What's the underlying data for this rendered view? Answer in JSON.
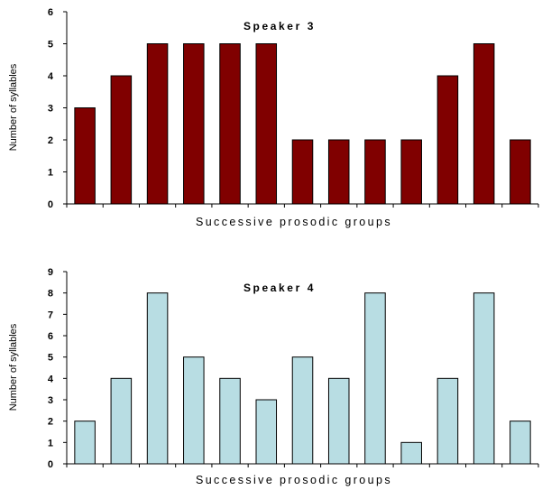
{
  "chart_data": [
    {
      "type": "bar",
      "title": "Speaker 3",
      "xlabel": "Successive prosodic groups",
      "ylabel": "Number of syllables",
      "ylim": [
        0,
        6
      ],
      "yticks": [
        "0",
        "1",
        "2",
        "3",
        "4",
        "5",
        "6"
      ],
      "values": [
        3,
        4,
        5,
        5,
        5,
        5,
        2,
        2,
        2,
        2,
        4,
        5,
        2
      ],
      "bar_color": "#800000",
      "grid": false,
      "legend": "none"
    },
    {
      "type": "bar",
      "title": "Speaker 4",
      "xlabel": "Successive prosodic groups",
      "ylabel": "Number of syllables",
      "ylim": [
        0,
        9
      ],
      "yticks": [
        "0",
        "1",
        "2",
        "3",
        "4",
        "5",
        "6",
        "7",
        "8",
        "9"
      ],
      "values": [
        2,
        4,
        8,
        5,
        4,
        3,
        5,
        4,
        8,
        1,
        4,
        8,
        2
      ],
      "bar_color": "#b8dde3",
      "grid": false,
      "legend": "none"
    }
  ]
}
